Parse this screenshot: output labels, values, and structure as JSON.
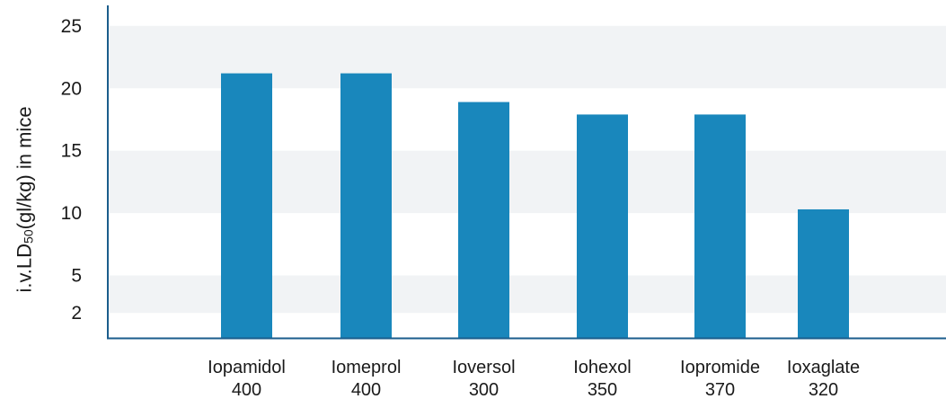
{
  "chart_data": {
    "type": "bar",
    "ylabel": {
      "prefix": "i.v.LD",
      "subscript": "50",
      "suffix": "(gl/kg) in mice"
    },
    "yticks": [
      2,
      5,
      10,
      15,
      20,
      25
    ],
    "ylim": [
      0,
      26.5
    ],
    "categories": [
      {
        "name": "Iopamidol",
        "dose": "400"
      },
      {
        "name": "Iomeprol",
        "dose": "400"
      },
      {
        "name": "Ioversol",
        "dose": "300"
      },
      {
        "name": "Iohexol",
        "dose": "350"
      },
      {
        "name": "Iopromide",
        "dose": "370"
      },
      {
        "name": "Ioxaglate",
        "dose": "320"
      }
    ],
    "values": [
      21.2,
      21.2,
      18.9,
      17.9,
      17.9,
      10.3
    ],
    "colors": {
      "bar": "#1987bc",
      "axis": "#1b5d8c",
      "band": "#f1f3f5"
    }
  }
}
